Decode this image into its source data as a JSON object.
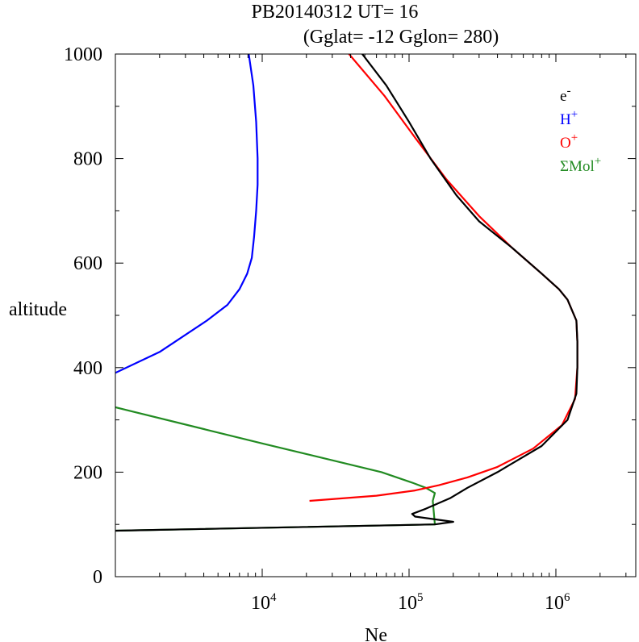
{
  "chart_data": {
    "type": "line",
    "title": "PB20140312   UT=  16",
    "subtitle": "(Gglat= -12   Gglon=  280)",
    "xlabel": "Ne",
    "ylabel": "altitude",
    "xscale": "log",
    "xlim": [
      1000,
      3500000
    ],
    "ylim": [
      0,
      1000
    ],
    "x_tick_labels": [
      {
        "value": 10000,
        "base": "10",
        "exp": "4"
      },
      {
        "value": 100000,
        "base": "10",
        "exp": "5"
      },
      {
        "value": 1000000,
        "base": "10",
        "exp": "6"
      }
    ],
    "y_ticks": [
      0,
      200,
      400,
      600,
      800,
      1000
    ],
    "y_tick_labels": [
      "0",
      "200",
      "400",
      "600",
      "800",
      "1000"
    ],
    "grid": false,
    "legend_position": "top-right",
    "series": [
      {
        "name": "e",
        "sup": "-",
        "color": "#000000",
        "points": [
          [
            1000,
            88
          ],
          [
            150000,
            100
          ],
          [
            200000,
            105
          ],
          [
            110000,
            115
          ],
          [
            105000,
            120
          ],
          [
            130000,
            130
          ],
          [
            190000,
            150
          ],
          [
            250000,
            170
          ],
          [
            400000,
            200
          ],
          [
            800000,
            250
          ],
          [
            1200000,
            300
          ],
          [
            1380000,
            350
          ],
          [
            1400000,
            400
          ],
          [
            1400000,
            450
          ],
          [
            1380000,
            490
          ],
          [
            1200000,
            530
          ],
          [
            1050000,
            550
          ],
          [
            800000,
            580
          ],
          [
            500000,
            630
          ],
          [
            300000,
            680
          ],
          [
            210000,
            730
          ],
          [
            140000,
            800
          ],
          [
            100000,
            870
          ],
          [
            70000,
            940
          ],
          [
            48000,
            1000
          ]
        ]
      },
      {
        "name": "H",
        "sup": "+",
        "color": "#0000ff",
        "points": [
          [
            1000,
            390
          ],
          [
            2000,
            430
          ],
          [
            4200,
            490
          ],
          [
            5800,
            520
          ],
          [
            7000,
            550
          ],
          [
            7900,
            580
          ],
          [
            8500,
            610
          ],
          [
            8800,
            650
          ],
          [
            9100,
            700
          ],
          [
            9300,
            750
          ],
          [
            9300,
            800
          ],
          [
            9100,
            870
          ],
          [
            8700,
            940
          ],
          [
            8100,
            1000
          ]
        ]
      },
      {
        "name": "O",
        "sup": "+",
        "color": "#ff0000",
        "points": [
          [
            21000,
            145
          ],
          [
            60000,
            155
          ],
          [
            110000,
            165
          ],
          [
            160000,
            175
          ],
          [
            250000,
            190
          ],
          [
            400000,
            210
          ],
          [
            700000,
            245
          ],
          [
            1100000,
            290
          ],
          [
            1350000,
            340
          ],
          [
            1400000,
            400
          ],
          [
            1400000,
            450
          ],
          [
            1380000,
            490
          ],
          [
            1200000,
            530
          ],
          [
            1050000,
            550
          ],
          [
            800000,
            580
          ],
          [
            500000,
            630
          ],
          [
            300000,
            690
          ],
          [
            180000,
            760
          ],
          [
            110000,
            840
          ],
          [
            68000,
            920
          ],
          [
            39000,
            1000
          ]
        ]
      },
      {
        "name": "ΣMol",
        "sup": "+",
        "color": "#228b22",
        "points": [
          [
            1000,
            88
          ],
          [
            150000,
            100
          ],
          [
            145000,
            145
          ],
          [
            150000,
            160
          ],
          [
            130000,
            170
          ],
          [
            105000,
            180
          ],
          [
            65000,
            200
          ],
          [
            10000,
            255
          ],
          [
            1000,
            324
          ]
        ]
      }
    ]
  }
}
